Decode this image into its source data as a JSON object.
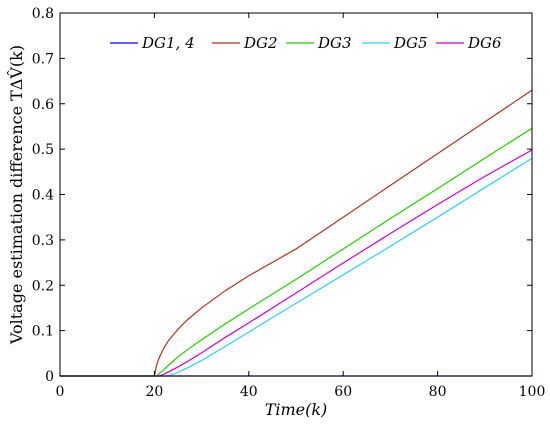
{
  "chart_data": {
    "type": "line",
    "xlabel": "Time(k)",
    "ylabel": "Voltage estimation difference TΔV̂(k)",
    "xlim": [
      0,
      100
    ],
    "ylim": [
      0,
      0.8
    ],
    "xticks": [
      "0",
      "20",
      "40",
      "60",
      "80",
      "100"
    ],
    "yticks": [
      "0",
      "0.1",
      "0.2",
      "0.3",
      "0.4",
      "0.5",
      "0.6",
      "0.7",
      "0.8"
    ],
    "grid": false,
    "legend_position": "top",
    "series": [
      {
        "name": "DG1, 4",
        "color": "#0000ff",
        "x": [
          0,
          20,
          40,
          60,
          80,
          100
        ],
        "y": [
          0.0,
          0.0,
          0.0,
          0.0,
          0.0,
          0.0
        ]
      },
      {
        "name": "DG2",
        "color": "#b0321e",
        "x": [
          0,
          20,
          20.5,
          21,
          22,
          23,
          25,
          27,
          30,
          35,
          40,
          50,
          60,
          70,
          80,
          90,
          100
        ],
        "y": [
          0.0,
          0.0,
          0.025,
          0.04,
          0.062,
          0.078,
          0.103,
          0.124,
          0.15,
          0.188,
          0.221,
          0.28,
          0.35,
          0.42,
          0.49,
          0.56,
          0.63
        ]
      },
      {
        "name": "DG3",
        "color": "#22cc00",
        "x": [
          0,
          20.5,
          21,
          22,
          23,
          25,
          27,
          30,
          35,
          40,
          50,
          60,
          70,
          80,
          90,
          100
        ],
        "y": [
          0.0,
          0.0,
          0.005,
          0.014,
          0.024,
          0.042,
          0.058,
          0.08,
          0.115,
          0.148,
          0.213,
          0.28,
          0.347,
          0.413,
          0.48,
          0.546
        ]
      },
      {
        "name": "DG5",
        "color": "#33ccff",
        "x": [
          0,
          22.5,
          23,
          24,
          25,
          27,
          30,
          35,
          40,
          50,
          60,
          70,
          80,
          90,
          100
        ],
        "y": [
          0.0,
          0.0,
          0.001,
          0.004,
          0.008,
          0.018,
          0.034,
          0.065,
          0.097,
          0.16,
          0.223,
          0.286,
          0.35,
          0.415,
          0.48
        ]
      },
      {
        "name": "DG6",
        "color": "#cc00cc",
        "x": [
          0,
          21,
          22,
          23,
          25,
          27,
          30,
          35,
          40,
          50,
          60,
          70,
          80,
          90,
          100
        ],
        "y": [
          0.0,
          0.0,
          0.004,
          0.009,
          0.02,
          0.032,
          0.051,
          0.085,
          0.117,
          0.183,
          0.249,
          0.314,
          0.378,
          0.44,
          0.498
        ]
      }
    ]
  }
}
